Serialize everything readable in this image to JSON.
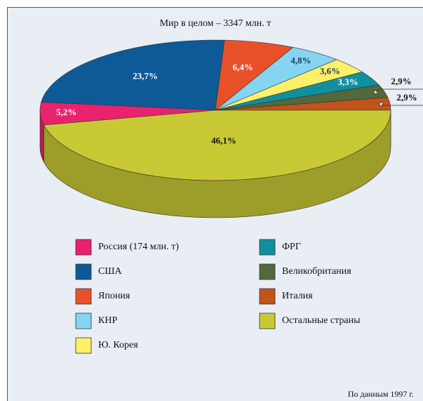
{
  "chart_data": {
    "type": "pie3d",
    "title": "Мир в целом – 3347 млн. т",
    "note": "По данным 1997 г.",
    "categories": [
      "Россия (174 млн. т)",
      "США",
      "Япония",
      "КНР",
      "Ю. Корея",
      "ФРГ",
      "Великобритания",
      "Италия",
      "Остальные страны"
    ],
    "values": [
      5.2,
      23.7,
      6.4,
      4.8,
      3.6,
      3.3,
      2.9,
      2.9,
      46.1
    ],
    "value_labels": [
      "5,2%",
      "23,7%",
      "6,4%",
      "4,8%",
      "3,6%",
      "3,3%",
      "2,9%",
      "2,9%",
      "46,1%"
    ],
    "colors": [
      "#e8226f",
      "#0d5a96",
      "#e8502a",
      "#84d4f2",
      "#fff06a",
      "#108f9f",
      "#52693c",
      "#c2531a",
      "#c9c935"
    ]
  }
}
